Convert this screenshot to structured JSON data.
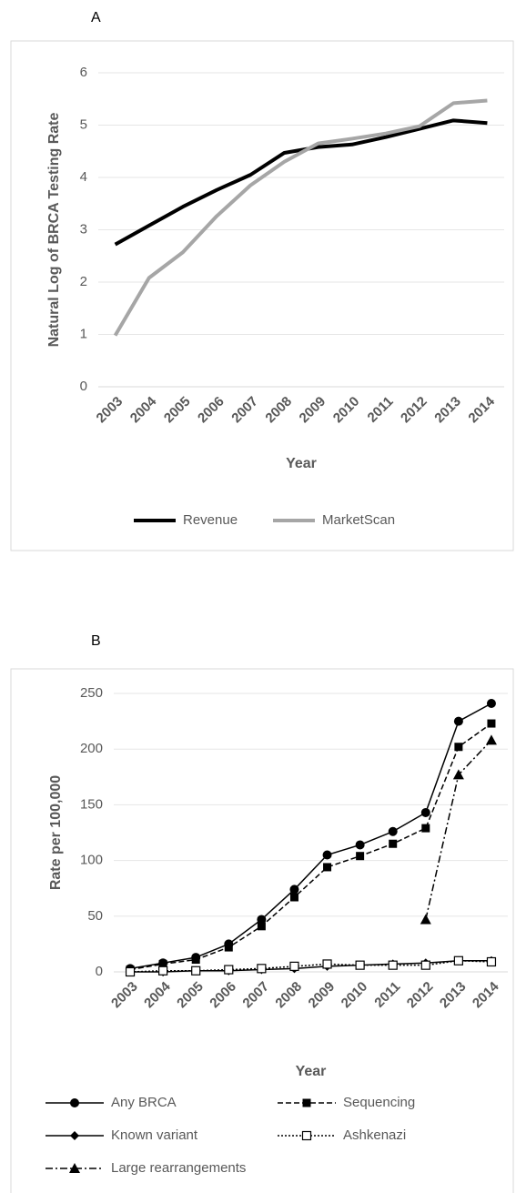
{
  "chart_data": [
    {
      "type": "line",
      "label": "A",
      "ylabel": "Natural Log of BRCA Testing Rate",
      "xlabel": "Year",
      "categories": [
        "2003",
        "2004",
        "2005",
        "2006",
        "2007",
        "2008",
        "2009",
        "2010",
        "2011",
        "2012",
        "2013",
        "2014"
      ],
      "ylim": [
        0,
        6
      ],
      "yticks": [
        0,
        1,
        2,
        3,
        4,
        5,
        6
      ],
      "grid": true,
      "legend": "bottom",
      "series": [
        {
          "name": "Revenue",
          "color": "#000000",
          "width": 4,
          "dash": "solid",
          "marker": "none",
          "values": [
            2.72,
            3.08,
            3.44,
            3.76,
            4.05,
            4.47,
            4.58,
            4.63,
            4.77,
            4.93,
            5.09,
            5.04
          ]
        },
        {
          "name": "MarketScan",
          "color": "#a6a6a6",
          "width": 4,
          "dash": "solid",
          "marker": "none",
          "values": [
            0.98,
            2.08,
            2.57,
            3.26,
            3.85,
            4.3,
            4.65,
            4.74,
            4.84,
            4.98,
            5.42,
            5.47
          ]
        }
      ]
    },
    {
      "type": "line",
      "label": "B",
      "ylabel": "Rate per 100,000",
      "xlabel": "Year",
      "categories": [
        "2003",
        "2004",
        "2005",
        "2006",
        "2007",
        "2008",
        "2009",
        "2010",
        "2011",
        "2012",
        "2013",
        "2014"
      ],
      "ylim": [
        0,
        250
      ],
      "yticks": [
        0,
        50,
        100,
        150,
        200,
        250
      ],
      "grid": true,
      "legend": "bottom",
      "series": [
        {
          "name": "Any BRCA",
          "color": "#000000",
          "width": 1.5,
          "dash": "solid",
          "marker": "circle",
          "values": [
            3,
            8,
            13,
            25,
            47,
            74,
            105,
            114,
            126,
            143,
            225,
            241
          ]
        },
        {
          "name": "Sequencing",
          "color": "#000000",
          "width": 1.5,
          "dash": "dashed",
          "marker": "square",
          "values": [
            2,
            7,
            11,
            22,
            41,
            67,
            94,
            104,
            115,
            129,
            202,
            223
          ]
        },
        {
          "name": "Known variant",
          "color": "#000000",
          "width": 1.5,
          "dash": "solid",
          "marker": "diamond",
          "values": [
            0,
            0,
            1,
            1,
            2,
            3,
            5,
            6,
            7,
            8,
            10,
            10
          ]
        },
        {
          "name": "Ashkenazi",
          "color": "#000000",
          "width": 1.5,
          "dash": "dotted",
          "marker": "square-open",
          "values": [
            0,
            1,
            1,
            2,
            3,
            5,
            7,
            6,
            6,
            6,
            10,
            9
          ]
        },
        {
          "name": "Large rearrangements",
          "color": "#000000",
          "width": 1.5,
          "dash": "dashdot",
          "marker": "triangle",
          "values": [
            null,
            null,
            null,
            null,
            null,
            null,
            null,
            null,
            null,
            47,
            177,
            208
          ]
        }
      ]
    }
  ]
}
